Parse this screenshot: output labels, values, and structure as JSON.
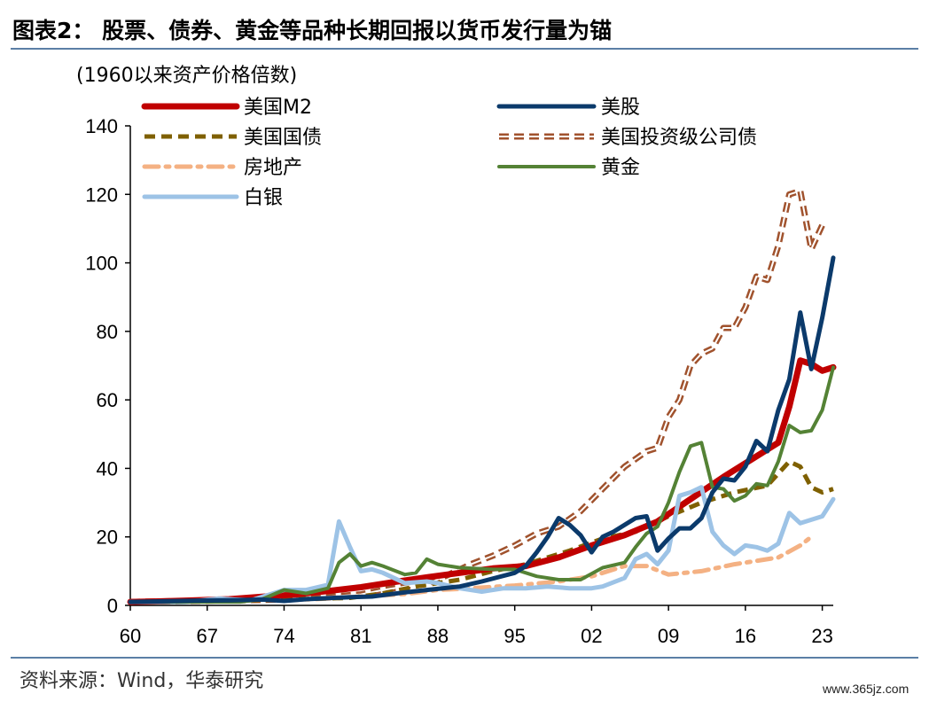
{
  "title": "图表2： 股票、债券、黄金等品种长期回报以货币发行量为锚",
  "source": "资料来源：Wind，华泰研究",
  "watermark": "www.365jz.com",
  "chart_data": {
    "type": "line",
    "ylabel": "(1960以来资产价格倍数)",
    "ylim": [
      0,
      140
    ],
    "yticks": [
      0,
      20,
      40,
      60,
      80,
      100,
      120,
      140
    ],
    "xlim": [
      1960,
      2024
    ],
    "xticks": [
      1960,
      1967,
      1974,
      1981,
      1988,
      1995,
      2002,
      2009,
      2016,
      2023
    ],
    "xtick_labels": [
      "60",
      "67",
      "74",
      "81",
      "88",
      "95",
      "02",
      "09",
      "16",
      "23"
    ],
    "grid": false,
    "legend_position": "top",
    "series": [
      {
        "name": "美国M2",
        "color": "#C00000",
        "style": "solid",
        "width": 7,
        "points": [
          [
            1960,
            1
          ],
          [
            1963,
            1.2
          ],
          [
            1966,
            1.5
          ],
          [
            1969,
            1.8
          ],
          [
            1972,
            2.5
          ],
          [
            1975,
            3.2
          ],
          [
            1978,
            4.2
          ],
          [
            1981,
            5.3
          ],
          [
            1984,
            6.8
          ],
          [
            1987,
            8.2
          ],
          [
            1990,
            9.5
          ],
          [
            1993,
            10.8
          ],
          [
            1996,
            11.5
          ],
          [
            1999,
            14
          ],
          [
            2002,
            17.5
          ],
          [
            2005,
            20.5
          ],
          [
            2008,
            24.5
          ],
          [
            2011,
            31
          ],
          [
            2014,
            37.5
          ],
          [
            2017,
            43.5
          ],
          [
            2019,
            47.5
          ],
          [
            2020,
            58
          ],
          [
            2021,
            71.5
          ],
          [
            2022,
            70.5
          ],
          [
            2023,
            68.5
          ],
          [
            2024,
            69.5
          ]
        ]
      },
      {
        "name": "美股",
        "color": "#0B3A6B",
        "style": "solid",
        "width": 5,
        "points": [
          [
            1960,
            1
          ],
          [
            1963,
            1.2
          ],
          [
            1966,
            1.4
          ],
          [
            1969,
            1.5
          ],
          [
            1972,
            1.7
          ],
          [
            1974,
            1.3
          ],
          [
            1976,
            1.8
          ],
          [
            1980,
            2.4
          ],
          [
            1982,
            2.6
          ],
          [
            1985,
            3.8
          ],
          [
            1987,
            4.5
          ],
          [
            1990,
            5.5
          ],
          [
            1992,
            7
          ],
          [
            1995,
            9.5
          ],
          [
            1996,
            11.5
          ],
          [
            1997,
            15.5
          ],
          [
            1998,
            20
          ],
          [
            1999,
            25.5
          ],
          [
            2000,
            23.5
          ],
          [
            2001,
            20.5
          ],
          [
            2002,
            15.5
          ],
          [
            2003,
            20
          ],
          [
            2004,
            21.5
          ],
          [
            2006,
            25.5
          ],
          [
            2007,
            26
          ],
          [
            2008,
            16
          ],
          [
            2009,
            19.5
          ],
          [
            2010,
            22.5
          ],
          [
            2011,
            22.5
          ],
          [
            2012,
            25.5
          ],
          [
            2013,
            33
          ],
          [
            2014,
            37
          ],
          [
            2015,
            36.5
          ],
          [
            2016,
            40.5
          ],
          [
            2017,
            48
          ],
          [
            2018,
            45
          ],
          [
            2019,
            57
          ],
          [
            2020,
            66
          ],
          [
            2021,
            85.5
          ],
          [
            2022,
            69
          ],
          [
            2023,
            84
          ],
          [
            2024,
            101.5
          ]
        ]
      },
      {
        "name": "美国国债",
        "color": "#7F6000",
        "style": "dash",
        "width": 5,
        "points": [
          [
            1960,
            1
          ],
          [
            1965,
            1.2
          ],
          [
            1970,
            1.4
          ],
          [
            1975,
            1.8
          ],
          [
            1980,
            2.2
          ],
          [
            1983,
            3.5
          ],
          [
            1986,
            5.5
          ],
          [
            1990,
            7.5
          ],
          [
            1993,
            10
          ],
          [
            1996,
            12
          ],
          [
            2000,
            16
          ],
          [
            2003,
            19.5
          ],
          [
            2006,
            21.5
          ],
          [
            2009,
            26
          ],
          [
            2012,
            30
          ],
          [
            2015,
            33
          ],
          [
            2018,
            35
          ],
          [
            2020,
            42
          ],
          [
            2021,
            40.5
          ],
          [
            2022,
            34.5
          ],
          [
            2023,
            33
          ],
          [
            2024,
            34
          ]
        ]
      },
      {
        "name": "美国投资级公司债",
        "color": "#A0522D",
        "style": "hollow-dash",
        "width": 4,
        "points": [
          [
            1960,
            1
          ],
          [
            1965,
            1.3
          ],
          [
            1970,
            1.5
          ],
          [
            1974,
            1.7
          ],
          [
            1978,
            2.5
          ],
          [
            1981,
            3.2
          ],
          [
            1983,
            4.5
          ],
          [
            1985,
            5.5
          ],
          [
            1987,
            6.2
          ],
          [
            1989,
            9
          ],
          [
            1991,
            12
          ],
          [
            1993,
            14.5
          ],
          [
            1995,
            17.5
          ],
          [
            1997,
            21
          ],
          [
            1999,
            23
          ],
          [
            2001,
            27.5
          ],
          [
            2003,
            34
          ],
          [
            2005,
            40.5
          ],
          [
            2007,
            45
          ],
          [
            2008,
            46
          ],
          [
            2009,
            55
          ],
          [
            2010,
            60
          ],
          [
            2011,
            70
          ],
          [
            2012,
            73.5
          ],
          [
            2013,
            75
          ],
          [
            2014,
            81
          ],
          [
            2015,
            81
          ],
          [
            2016,
            87
          ],
          [
            2017,
            96
          ],
          [
            2018,
            95
          ],
          [
            2019,
            105
          ],
          [
            2020,
            120
          ],
          [
            2021,
            121
          ],
          [
            2022,
            104
          ],
          [
            2023,
            111
          ]
        ]
      },
      {
        "name": "房地产",
        "color": "#F4B183",
        "style": "dashdot",
        "width": 5,
        "points": [
          [
            1974,
            1.5
          ],
          [
            1978,
            2
          ],
          [
            1982,
            2.8
          ],
          [
            1985,
            3.3
          ],
          [
            1988,
            4.5
          ],
          [
            1991,
            5
          ],
          [
            1995,
            5.8
          ],
          [
            1999,
            7
          ],
          [
            2002,
            8.5
          ],
          [
            2005,
            11.5
          ],
          [
            2007,
            11.5
          ],
          [
            2009,
            9
          ],
          [
            2012,
            10
          ],
          [
            2015,
            12
          ],
          [
            2017,
            13
          ],
          [
            2019,
            14
          ],
          [
            2021,
            17.5
          ],
          [
            2022,
            20
          ]
        ]
      },
      {
        "name": "黄金",
        "color": "#548235",
        "style": "solid",
        "width": 4,
        "points": [
          [
            1960,
            1
          ],
          [
            1967,
            1
          ],
          [
            1970,
            1
          ],
          [
            1972,
            1.8
          ],
          [
            1974,
            4.5
          ],
          [
            1976,
            3.5
          ],
          [
            1978,
            5
          ],
          [
            1979,
            12.5
          ],
          [
            1980,
            15
          ],
          [
            1981,
            11.5
          ],
          [
            1982,
            12.5
          ],
          [
            1983,
            11.5
          ],
          [
            1985,
            9
          ],
          [
            1986,
            9.5
          ],
          [
            1987,
            13.5
          ],
          [
            1988,
            12
          ],
          [
            1990,
            11
          ],
          [
            1993,
            10.5
          ],
          [
            1995,
            10.5
          ],
          [
            1997,
            8.5
          ],
          [
            1999,
            7.5
          ],
          [
            2001,
            7.5
          ],
          [
            2003,
            11
          ],
          [
            2005,
            12.5
          ],
          [
            2006,
            17
          ],
          [
            2007,
            21
          ],
          [
            2008,
            23
          ],
          [
            2009,
            30
          ],
          [
            2010,
            39
          ],
          [
            2011,
            46.5
          ],
          [
            2012,
            47.5
          ],
          [
            2013,
            34.5
          ],
          [
            2014,
            34
          ],
          [
            2015,
            30.5
          ],
          [
            2016,
            32
          ],
          [
            2017,
            35.5
          ],
          [
            2018,
            35
          ],
          [
            2019,
            42
          ],
          [
            2020,
            52.5
          ],
          [
            2021,
            50.5
          ],
          [
            2022,
            51
          ],
          [
            2023,
            57
          ],
          [
            2024,
            69.5
          ]
        ]
      },
      {
        "name": "白银",
        "color": "#9DC3E6",
        "style": "solid",
        "width": 5,
        "points": [
          [
            1960,
            1
          ],
          [
            1965,
            1
          ],
          [
            1968,
            2
          ],
          [
            1971,
            1.5
          ],
          [
            1974,
            4.5
          ],
          [
            1976,
            4.5
          ],
          [
            1978,
            6
          ],
          [
            1979,
            24.5
          ],
          [
            1980,
            17
          ],
          [
            1981,
            10
          ],
          [
            1982,
            10.5
          ],
          [
            1983,
            9.5
          ],
          [
            1985,
            6.5
          ],
          [
            1987,
            7
          ],
          [
            1988,
            6.5
          ],
          [
            1990,
            5
          ],
          [
            1992,
            4
          ],
          [
            1994,
            5
          ],
          [
            1996,
            5
          ],
          [
            1998,
            5.5
          ],
          [
            2000,
            5
          ],
          [
            2002,
            5
          ],
          [
            2003,
            5.5
          ],
          [
            2005,
            8
          ],
          [
            2006,
            13.5
          ],
          [
            2007,
            15
          ],
          [
            2008,
            12
          ],
          [
            2009,
            16
          ],
          [
            2010,
            32
          ],
          [
            2011,
            33
          ],
          [
            2012,
            34.5
          ],
          [
            2013,
            21.5
          ],
          [
            2014,
            17.5
          ],
          [
            2015,
            15
          ],
          [
            2016,
            17.5
          ],
          [
            2017,
            17
          ],
          [
            2018,
            16
          ],
          [
            2019,
            18
          ],
          [
            2020,
            27
          ],
          [
            2021,
            24
          ],
          [
            2022,
            25
          ],
          [
            2023,
            26
          ],
          [
            2024,
            31
          ]
        ]
      }
    ]
  }
}
